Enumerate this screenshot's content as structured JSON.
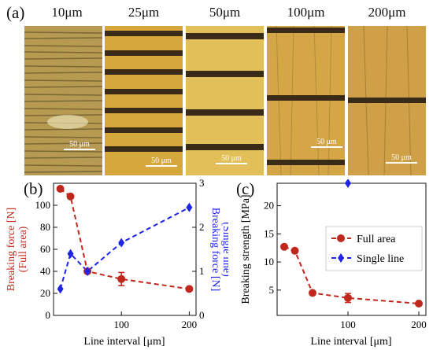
{
  "panel_a": {
    "letter": "(a)",
    "images": [
      {
        "label": "10μm",
        "scalebar": "50 μm",
        "stripes": 0
      },
      {
        "label": "25μm",
        "scalebar": "50 μm",
        "stripes": 7
      },
      {
        "label": "50μm",
        "scalebar": "50 μm",
        "stripes": 4
      },
      {
        "label": "100μm",
        "scalebar": "50 μm",
        "stripes": 2
      },
      {
        "label": "200μm",
        "scalebar": "50 μm",
        "stripes": 1
      }
    ]
  },
  "panel_b_letter": "(b)",
  "panel_c_letter": "(c)",
  "colors": {
    "full_area": "#c0281e",
    "single_line": "#1f24e6",
    "gold": "#d4a63a",
    "dark_stripe": "#3a2a18"
  },
  "chart_data": [
    {
      "type": "line",
      "panel": "(b)",
      "xlabel": "Line interval [μm]",
      "ylabel_left": "Breaking force [N]",
      "ylabel_left_sub": "(Full area)",
      "ylabel_right": "Breaking force [N]",
      "ylabel_right_sub": "(Single line)",
      "xlim": [
        0,
        210
      ],
      "ylim_left": [
        0,
        120
      ],
      "ylim_right": [
        0,
        3
      ],
      "xticks": [
        0,
        100,
        200
      ],
      "xtick_labels": [
        "",
        "100",
        "200"
      ],
      "yticks_left": [
        0,
        20,
        40,
        60,
        80,
        100
      ],
      "yticks_right": [
        0,
        1,
        2,
        3
      ],
      "series": [
        {
          "name": "Full area",
          "axis": "left",
          "marker": "circle",
          "x": [
            10,
            25,
            50,
            100,
            200
          ],
          "y": [
            115,
            108,
            40,
            33,
            24
          ],
          "err": [
            0,
            0,
            0,
            6,
            0
          ]
        },
        {
          "name": "Single line",
          "axis": "right",
          "marker": "diamond",
          "x": [
            10,
            25,
            50,
            100,
            200
          ],
          "y": [
            0.6,
            1.4,
            1.0,
            1.65,
            2.45
          ]
        }
      ]
    },
    {
      "type": "line",
      "panel": "(c)",
      "xlabel": "Line interval [μm]",
      "ylabel": "Breaking strength [MPa]",
      "xlim": [
        0,
        210
      ],
      "ylim": [
        0.5,
        24
      ],
      "xticks": [
        0,
        100,
        200
      ],
      "xtick_labels": [
        "",
        "100",
        "200"
      ],
      "yticks": [
        5,
        10,
        15,
        20
      ],
      "legend": "right",
      "series": [
        {
          "name": "Full area",
          "marker": "circle",
          "x": [
            10,
            25,
            50,
            100,
            200
          ],
          "y": [
            12.7,
            12.0,
            4.5,
            3.6,
            2.6
          ],
          "err": [
            0,
            0,
            0,
            0.8,
            0
          ]
        },
        {
          "name": "Single line",
          "marker": "diamond",
          "x": [
            100
          ],
          "y": [
            24.0
          ]
        }
      ]
    }
  ]
}
